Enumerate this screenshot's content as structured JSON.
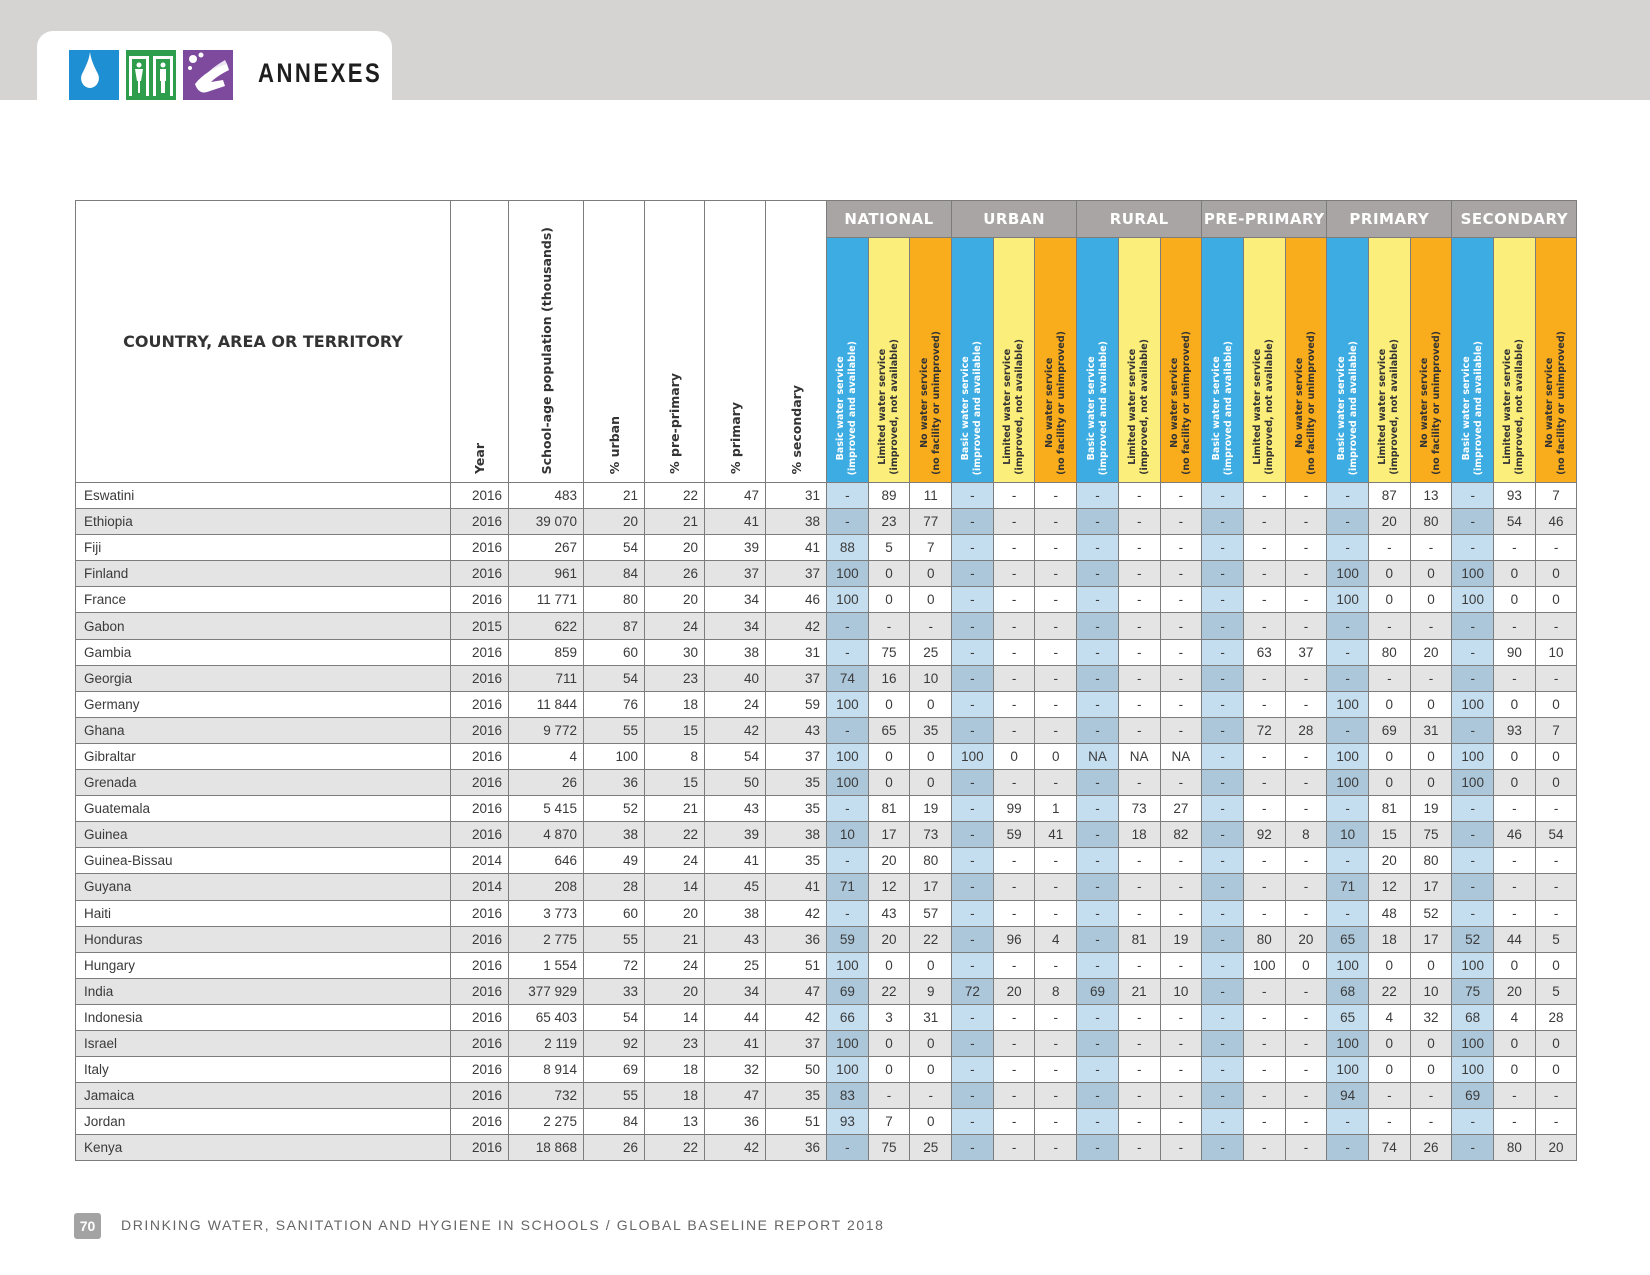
{
  "header": {
    "title": "ANNEXES",
    "icons": [
      "water-drop-icon",
      "toilet-icon",
      "handwashing-icon"
    ],
    "colors": {
      "water": "#1e8fd3",
      "sanitation": "#2e9e4c",
      "hygiene": "#7d4a9e"
    }
  },
  "table": {
    "country_header": "COUNTRY, AREA OR TERRITORY",
    "column_headers": [
      "Year",
      "School-age population (thousands)",
      "% urban",
      "% pre-primary",
      "% primary",
      "% secondary"
    ],
    "groups": [
      "NATIONAL",
      "URBAN",
      "RURAL",
      "PRE-PRIMARY",
      "PRIMARY",
      "SECONDARY"
    ],
    "service_levels": [
      {
        "line1": "Basic water service",
        "line2": "(improved and available)"
      },
      {
        "line1": "Limited water service",
        "line2": "(improved, not available)"
      },
      {
        "line1": "No water service",
        "line2": "(no facility or unimproved)"
      }
    ],
    "level_colors": [
      "#3cace2",
      "#fcee7a",
      "#f9ac1c"
    ],
    "rows": [
      {
        "name": "Eswatini",
        "vals": [
          "2016",
          "483",
          "21",
          "22",
          "47",
          "31",
          "-",
          "89",
          "11",
          "-",
          "-",
          "-",
          "-",
          "-",
          "-",
          "-",
          "-",
          "-",
          "-",
          "87",
          "13",
          "-",
          "93",
          "7"
        ]
      },
      {
        "name": "Ethiopia",
        "vals": [
          "2016",
          "39 070",
          "20",
          "21",
          "41",
          "38",
          "-",
          "23",
          "77",
          "-",
          "-",
          "-",
          "-",
          "-",
          "-",
          "-",
          "-",
          "-",
          "-",
          "20",
          "80",
          "-",
          "54",
          "46"
        ]
      },
      {
        "name": "Fiji",
        "vals": [
          "2016",
          "267",
          "54",
          "20",
          "39",
          "41",
          "88",
          "5",
          "7",
          "-",
          "-",
          "-",
          "-",
          "-",
          "-",
          "-",
          "-",
          "-",
          "-",
          "-",
          "-",
          "-",
          "-",
          "-"
        ]
      },
      {
        "name": "Finland",
        "vals": [
          "2016",
          "961",
          "84",
          "26",
          "37",
          "37",
          "100",
          "0",
          "0",
          "-",
          "-",
          "-",
          "-",
          "-",
          "-",
          "-",
          "-",
          "-",
          "100",
          "0",
          "0",
          "100",
          "0",
          "0"
        ]
      },
      {
        "name": "France",
        "vals": [
          "2016",
          "11 771",
          "80",
          "20",
          "34",
          "46",
          "100",
          "0",
          "0",
          "-",
          "-",
          "-",
          "-",
          "-",
          "-",
          "-",
          "-",
          "-",
          "100",
          "0",
          "0",
          "100",
          "0",
          "0"
        ]
      },
      {
        "name": "Gabon",
        "vals": [
          "2015",
          "622",
          "87",
          "24",
          "34",
          "42",
          "-",
          "-",
          "-",
          "-",
          "-",
          "-",
          "-",
          "-",
          "-",
          "-",
          "-",
          "-",
          "-",
          "-",
          "-",
          "-",
          "-",
          "-"
        ]
      },
      {
        "name": "Gambia",
        "vals": [
          "2016",
          "859",
          "60",
          "30",
          "38",
          "31",
          "-",
          "75",
          "25",
          "-",
          "-",
          "-",
          "-",
          "-",
          "-",
          "-",
          "63",
          "37",
          "-",
          "80",
          "20",
          "-",
          "90",
          "10"
        ]
      },
      {
        "name": "Georgia",
        "vals": [
          "2016",
          "711",
          "54",
          "23",
          "40",
          "37",
          "74",
          "16",
          "10",
          "-",
          "-",
          "-",
          "-",
          "-",
          "-",
          "-",
          "-",
          "-",
          "-",
          "-",
          "-",
          "-",
          "-",
          "-"
        ]
      },
      {
        "name": "Germany",
        "vals": [
          "2016",
          "11 844",
          "76",
          "18",
          "24",
          "59",
          "100",
          "0",
          "0",
          "-",
          "-",
          "-",
          "-",
          "-",
          "-",
          "-",
          "-",
          "-",
          "100",
          "0",
          "0",
          "100",
          "0",
          "0"
        ]
      },
      {
        "name": "Ghana",
        "vals": [
          "2016",
          "9 772",
          "55",
          "15",
          "42",
          "43",
          "-",
          "65",
          "35",
          "-",
          "-",
          "-",
          "-",
          "-",
          "-",
          "-",
          "72",
          "28",
          "-",
          "69",
          "31",
          "-",
          "93",
          "7"
        ]
      },
      {
        "name": "Gibraltar",
        "vals": [
          "2016",
          "4",
          "100",
          "8",
          "54",
          "37",
          "100",
          "0",
          "0",
          "100",
          "0",
          "0",
          "NA",
          "NA",
          "NA",
          "-",
          "-",
          "-",
          "100",
          "0",
          "0",
          "100",
          "0",
          "0"
        ]
      },
      {
        "name": "Grenada",
        "vals": [
          "2016",
          "26",
          "36",
          "15",
          "50",
          "35",
          "100",
          "0",
          "0",
          "-",
          "-",
          "-",
          "-",
          "-",
          "-",
          "-",
          "-",
          "-",
          "100",
          "0",
          "0",
          "100",
          "0",
          "0"
        ]
      },
      {
        "name": "Guatemala",
        "vals": [
          "2016",
          "5 415",
          "52",
          "21",
          "43",
          "35",
          "-",
          "81",
          "19",
          "-",
          "99",
          "1",
          "-",
          "73",
          "27",
          "-",
          "-",
          "-",
          "-",
          "81",
          "19",
          "-",
          "-",
          "-"
        ]
      },
      {
        "name": "Guinea",
        "vals": [
          "2016",
          "4 870",
          "38",
          "22",
          "39",
          "38",
          "10",
          "17",
          "73",
          "-",
          "59",
          "41",
          "-",
          "18",
          "82",
          "-",
          "92",
          "8",
          "10",
          "15",
          "75",
          "-",
          "46",
          "54"
        ]
      },
      {
        "name": "Guinea-Bissau",
        "vals": [
          "2014",
          "646",
          "49",
          "24",
          "41",
          "35",
          "-",
          "20",
          "80",
          "-",
          "-",
          "-",
          "-",
          "-",
          "-",
          "-",
          "-",
          "-",
          "-",
          "20",
          "80",
          "-",
          "-",
          "-"
        ]
      },
      {
        "name": "Guyana",
        "vals": [
          "2014",
          "208",
          "28",
          "14",
          "45",
          "41",
          "71",
          "12",
          "17",
          "-",
          "-",
          "-",
          "-",
          "-",
          "-",
          "-",
          "-",
          "-",
          "71",
          "12",
          "17",
          "-",
          "-",
          "-"
        ]
      },
      {
        "name": "Haiti",
        "vals": [
          "2016",
          "3 773",
          "60",
          "20",
          "38",
          "42",
          "-",
          "43",
          "57",
          "-",
          "-",
          "-",
          "-",
          "-",
          "-",
          "-",
          "-",
          "-",
          "-",
          "48",
          "52",
          "-",
          "-",
          "-"
        ]
      },
      {
        "name": "Honduras",
        "vals": [
          "2016",
          "2 775",
          "55",
          "21",
          "43",
          "36",
          "59",
          "20",
          "22",
          "-",
          "96",
          "4",
          "-",
          "81",
          "19",
          "-",
          "80",
          "20",
          "65",
          "18",
          "17",
          "52",
          "44",
          "5"
        ]
      },
      {
        "name": "Hungary",
        "vals": [
          "2016",
          "1 554",
          "72",
          "24",
          "25",
          "51",
          "100",
          "0",
          "0",
          "-",
          "-",
          "-",
          "-",
          "-",
          "-",
          "-",
          "100",
          "0",
          "100",
          "0",
          "0",
          "100",
          "0",
          "0"
        ]
      },
      {
        "name": "India",
        "vals": [
          "2016",
          "377 929",
          "33",
          "20",
          "34",
          "47",
          "69",
          "22",
          "9",
          "72",
          "20",
          "8",
          "69",
          "21",
          "10",
          "-",
          "-",
          "-",
          "68",
          "22",
          "10",
          "75",
          "20",
          "5"
        ]
      },
      {
        "name": "Indonesia",
        "vals": [
          "2016",
          "65 403",
          "54",
          "14",
          "44",
          "42",
          "66",
          "3",
          "31",
          "-",
          "-",
          "-",
          "-",
          "-",
          "-",
          "-",
          "-",
          "-",
          "65",
          "4",
          "32",
          "68",
          "4",
          "28"
        ]
      },
      {
        "name": "Israel",
        "vals": [
          "2016",
          "2 119",
          "92",
          "23",
          "41",
          "37",
          "100",
          "0",
          "0",
          "-",
          "-",
          "-",
          "-",
          "-",
          "-",
          "-",
          "-",
          "-",
          "100",
          "0",
          "0",
          "100",
          "0",
          "0"
        ]
      },
      {
        "name": "Italy",
        "vals": [
          "2016",
          "8 914",
          "69",
          "18",
          "32",
          "50",
          "100",
          "0",
          "0",
          "-",
          "-",
          "-",
          "-",
          "-",
          "-",
          "-",
          "-",
          "-",
          "100",
          "0",
          "0",
          "100",
          "0",
          "0"
        ]
      },
      {
        "name": "Jamaica",
        "vals": [
          "2016",
          "732",
          "55",
          "18",
          "47",
          "35",
          "83",
          "-",
          "-",
          "-",
          "-",
          "-",
          "-",
          "-",
          "-",
          "-",
          "-",
          "-",
          "94",
          "-",
          "-",
          "69",
          "-",
          "-"
        ]
      },
      {
        "name": "Jordan",
        "vals": [
          "2016",
          "2 275",
          "84",
          "13",
          "36",
          "51",
          "93",
          "7",
          "0",
          "-",
          "-",
          "-",
          "-",
          "-",
          "-",
          "-",
          "-",
          "-",
          "-",
          "-",
          "-",
          "-",
          "-",
          "-"
        ]
      },
      {
        "name": "Kenya",
        "vals": [
          "2016",
          "18 868",
          "26",
          "22",
          "42",
          "36",
          "-",
          "75",
          "25",
          "-",
          "-",
          "-",
          "-",
          "-",
          "-",
          "-",
          "-",
          "-",
          "-",
          "74",
          "26",
          "-",
          "80",
          "20"
        ]
      }
    ]
  },
  "footer": {
    "page_number": "70",
    "text": "DRINKING WATER, SANITATION AND HYGIENE IN SCHOOLS / GLOBAL BASELINE REPORT 2018"
  }
}
